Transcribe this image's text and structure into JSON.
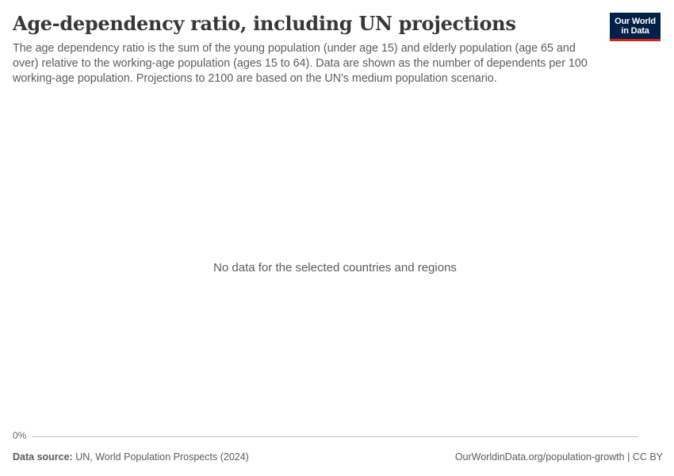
{
  "header": {
    "title": "Age-dependency ratio, including UN projections",
    "subtitle": "The age dependency ratio is the sum of the young population (under age 15) and elderly population (age 65 and over) relative to the working-age population (ages 15 to 64). Data are shown as the number of dependents per 100 working-age population. Projections to 2100 are based on the UN's medium population scenario.",
    "logo_line1": "Our World",
    "logo_line2": "in Data"
  },
  "chart": {
    "message": "No data for the selected countries and regions",
    "y_tick": "0%"
  },
  "footer": {
    "source_label": "Data source:",
    "source_value": "UN, World Population Prospects (2024)",
    "attribution": "OurWorldinData.org/population-growth | CC BY"
  },
  "colors": {
    "logo_bg": "#002147",
    "logo_accent": "#ce261e",
    "axis": "#bfbfbf",
    "text": "#5b5b5b",
    "title": "#373737"
  },
  "chart_data": {
    "type": "line",
    "title": "Age-dependency ratio, including UN projections",
    "subtitle": "The age dependency ratio is the sum of the young population (under age 15) and elderly population (age 65 and over) relative to the working-age population (ages 15 to 64). Data are shown as the number of dependents per 100 working-age population. Projections to 2100 are based on the UN's medium population scenario.",
    "xlabel": "",
    "ylabel": "",
    "y_ticks": [
      "0%"
    ],
    "series": [],
    "annotations": [
      "No data for the selected countries and regions"
    ],
    "grid": false,
    "legend": null,
    "source": "UN, World Population Prospects (2024)"
  }
}
